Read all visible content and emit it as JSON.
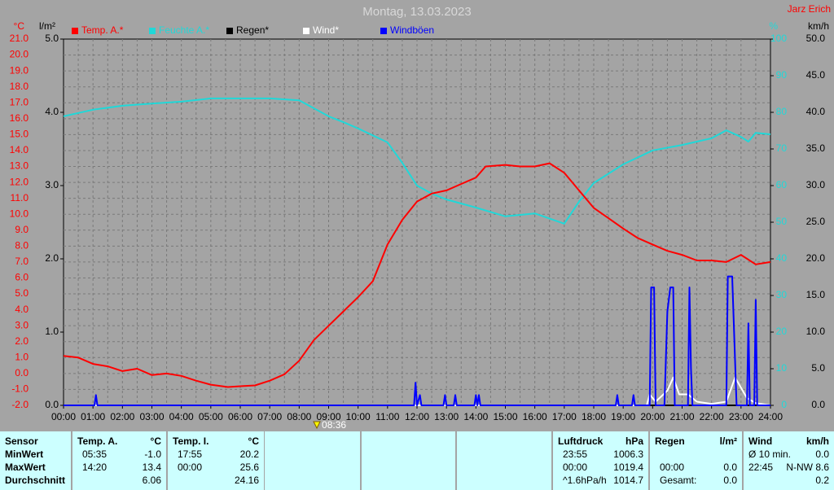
{
  "header": {
    "title": "Montag, 13.03.2023",
    "author": "Jarz Erich"
  },
  "chart_data": {
    "type": "line",
    "xlim": [
      0,
      24
    ],
    "xticks": [
      {
        "value": 0,
        "label": "00:00"
      },
      {
        "value": 1,
        "label": "01:00"
      },
      {
        "value": 2,
        "label": "02:00"
      },
      {
        "value": 3,
        "label": "03:00"
      },
      {
        "value": 4,
        "label": "04:00"
      },
      {
        "value": 5,
        "label": "05:00"
      },
      {
        "value": 6,
        "label": "06:00"
      },
      {
        "value": 7,
        "label": "07:00"
      },
      {
        "value": 8,
        "label": "08:00"
      },
      {
        "value": 9,
        "label": "09:00"
      },
      {
        "value": 10,
        "label": "10:00"
      },
      {
        "value": 11,
        "label": "11:00"
      },
      {
        "value": 12,
        "label": "12:00"
      },
      {
        "value": 13,
        "label": "13:00"
      },
      {
        "value": 14,
        "label": "14:00"
      },
      {
        "value": 15,
        "label": "15:00"
      },
      {
        "value": 16,
        "label": "16:00"
      },
      {
        "value": 17,
        "label": "17:00"
      },
      {
        "value": 18,
        "label": "18:00"
      },
      {
        "value": 19,
        "label": "19:00"
      },
      {
        "value": 20,
        "label": "20:00"
      },
      {
        "value": 21,
        "label": "21:00"
      },
      {
        "value": 22,
        "label": "22:00"
      },
      {
        "value": 23,
        "label": "23:00"
      },
      {
        "value": 24,
        "label": "24:00"
      }
    ],
    "ylabel": "°C",
    "ylim": [
      -2,
      21
    ],
    "yticks": [
      {
        "value": -2,
        "label": "-2.0"
      },
      {
        "value": -1,
        "label": "-1.0"
      },
      {
        "value": 0,
        "label": "0.0"
      },
      {
        "value": 1,
        "label": "1.0"
      },
      {
        "value": 2,
        "label": "2.0"
      },
      {
        "value": 3,
        "label": "3.0"
      },
      {
        "value": 4,
        "label": "4.0"
      },
      {
        "value": 5,
        "label": "5.0"
      },
      {
        "value": 6,
        "label": "6.0"
      },
      {
        "value": 7,
        "label": "7.0"
      },
      {
        "value": 8,
        "label": "8.0"
      },
      {
        "value": 9,
        "label": "9.0"
      },
      {
        "value": 10,
        "label": "10.0"
      },
      {
        "value": 11,
        "label": "11.0"
      },
      {
        "value": 12,
        "label": "12.0"
      },
      {
        "value": 13,
        "label": "13.0"
      },
      {
        "value": 14,
        "label": "14.0"
      },
      {
        "value": 15,
        "label": "15.0"
      },
      {
        "value": 16,
        "label": "16.0"
      },
      {
        "value": 17,
        "label": "17.0"
      },
      {
        "value": 18,
        "label": "18.0"
      },
      {
        "value": 19,
        "label": "19.0"
      },
      {
        "value": 20,
        "label": "20.0"
      },
      {
        "value": 21,
        "label": "21.0"
      }
    ],
    "rain_axis": {
      "label": "l/m²",
      "lim": [
        0,
        5
      ],
      "ticks": [
        {
          "value": 0,
          "label": "0.0"
        },
        {
          "value": 1,
          "label": "1.0"
        },
        {
          "value": 2,
          "label": "2.0"
        },
        {
          "value": 3,
          "label": "3.0"
        },
        {
          "value": 4,
          "label": "4.0"
        },
        {
          "value": 5,
          "label": "5.0"
        }
      ]
    },
    "y2label": "%",
    "y2lim": [
      0,
      100
    ],
    "y2ticks": [
      0,
      10,
      20,
      30,
      40,
      50,
      60,
      70,
      80,
      90,
      100
    ],
    "wind_axis": {
      "label": "km/h",
      "lim": [
        0,
        50
      ],
      "ticks": [
        {
          "value": 0,
          "label": "0.0"
        },
        {
          "value": 5,
          "label": "5.0"
        },
        {
          "value": 10,
          "label": "10.0"
        },
        {
          "value": 15,
          "label": "15.0"
        },
        {
          "value": 20,
          "label": "20.0"
        },
        {
          "value": 25,
          "label": "25.0"
        },
        {
          "value": 30,
          "label": "30.0"
        },
        {
          "value": 35,
          "label": "35.0"
        },
        {
          "value": 40,
          "label": "40.0"
        },
        {
          "value": 45,
          "label": "45.0"
        },
        {
          "value": 50,
          "label": "50.0"
        }
      ]
    },
    "grid": true,
    "marker": {
      "x": 8.6,
      "label": "08:36"
    },
    "series": [
      {
        "name": "Temp. A.*",
        "color": "#ff0000",
        "axis": "y",
        "x": [
          0,
          0.5,
          1,
          1.5,
          2,
          2.5,
          3,
          3.5,
          4,
          4.5,
          5,
          5.58,
          6,
          6.5,
          7,
          7.5,
          8,
          8.5,
          9,
          9.5,
          10,
          10.5,
          11,
          11.5,
          12,
          12.5,
          13,
          13.5,
          14,
          14.33,
          15,
          15.5,
          16,
          16.5,
          17,
          17.5,
          18,
          18.5,
          19,
          19.5,
          20,
          20.5,
          21,
          21.5,
          22,
          22.5,
          23,
          23.5,
          24
        ],
        "values": [
          1.1,
          1.0,
          0.6,
          0.45,
          0.15,
          0.3,
          -0.1,
          0.0,
          -0.15,
          -0.45,
          -0.7,
          -0.85,
          -0.8,
          -0.75,
          -0.45,
          -0.05,
          0.8,
          2.1,
          3.0,
          3.9,
          4.8,
          5.8,
          8.1,
          9.65,
          10.8,
          11.3,
          11.5,
          11.9,
          12.3,
          13.0,
          13.1,
          13.0,
          13.0,
          13.2,
          12.6,
          11.5,
          10.4,
          9.75,
          9.1,
          8.5,
          8.1,
          7.7,
          7.45,
          7.1,
          7.1,
          7.0,
          7.45,
          6.85,
          7.0
        ]
      },
      {
        "name": "Feuchte A.*",
        "color": "#20d8d8",
        "axis": "y2",
        "x": [
          0,
          1,
          2,
          3,
          4,
          5,
          6,
          7,
          8,
          9,
          9.5,
          10,
          11,
          11.5,
          12,
          12.5,
          13,
          14,
          15,
          16,
          17,
          17.5,
          18,
          19,
          20,
          21,
          22,
          22.5,
          23,
          23.25,
          23.5,
          24
        ],
        "values": [
          78.9,
          80.7,
          81.8,
          82.4,
          82.9,
          83.8,
          83.8,
          83.8,
          83.3,
          78.9,
          77.3,
          75.6,
          71.8,
          66.2,
          60.0,
          57.8,
          56.2,
          54.0,
          51.6,
          52.4,
          49.6,
          55.6,
          60.7,
          65.8,
          69.6,
          71.1,
          72.9,
          75.1,
          73.3,
          72.0,
          74.4,
          74.0
        ]
      },
      {
        "name": "Regen*",
        "color": "#000000",
        "axis": "rain",
        "x": [
          0,
          24
        ],
        "values": [
          0,
          0
        ]
      },
      {
        "name": "Wind*",
        "color": "#ffffff",
        "axis": "wind",
        "x": [
          0,
          19.8,
          19.9,
          20.1,
          20.5,
          20.7,
          20.9,
          21.2,
          21.5,
          22,
          22.5,
          22.8,
          23.2,
          23.5,
          24
        ],
        "values": [
          0,
          0,
          1.5,
          0.5,
          2,
          3.8,
          1.5,
          1.5,
          0.5,
          0.2,
          0.5,
          3.8,
          1,
          0.3,
          0
        ]
      },
      {
        "name": "Windböen",
        "color": "#0000ff",
        "axis": "wind",
        "x": [
          0,
          1.05,
          1.1,
          1.15,
          11.9,
          11.95,
          12.0,
          12.1,
          12.15,
          12.9,
          12.95,
          13.0,
          13.25,
          13.3,
          13.35,
          13.95,
          14.0,
          14.05,
          14.1,
          14.15,
          18.75,
          18.8,
          18.85,
          19.3,
          19.35,
          19.4,
          19.9,
          19.95,
          20.05,
          20.1,
          20.4,
          20.5,
          20.6,
          20.7,
          20.75,
          21.2,
          21.25,
          21.3,
          21.35,
          22.5,
          22.55,
          22.7,
          22.85,
          23.2,
          23.25,
          23.3,
          23.45,
          23.5,
          23.55,
          24
        ],
        "values": [
          0,
          0,
          1.4,
          0,
          0,
          3.1,
          0,
          1.4,
          0,
          0,
          1.4,
          0,
          0,
          1.4,
          0,
          0,
          1.4,
          0,
          1.4,
          0,
          0,
          1.4,
          0,
          0,
          1.4,
          0,
          0,
          16.1,
          16.1,
          0,
          0,
          12.8,
          16.1,
          16.1,
          0,
          0,
          16.1,
          5,
          0,
          0,
          17.6,
          17.6,
          0,
          0,
          11.2,
          0,
          0,
          14.4,
          0,
          0
        ]
      }
    ]
  },
  "table": {
    "row_labels": [
      "Sensor",
      "MinWert",
      "MaxWert",
      "Durchschnitt"
    ],
    "groups": [
      {
        "name": "Temp. A.",
        "unit": "°C",
        "rows": [
          [
            "05:35",
            "-1.0"
          ],
          [
            "14:20",
            "13.4"
          ],
          [
            null,
            "6.06"
          ]
        ]
      },
      {
        "name": "Temp. I.",
        "unit": "°C",
        "rows": [
          [
            "17:55",
            "20.2"
          ],
          [
            "00:00",
            "25.6"
          ],
          [
            null,
            "24.16"
          ]
        ]
      },
      {
        "name": "Luftdruck",
        "unit": "hPa",
        "rows": [
          [
            "23:55",
            "1006.3"
          ],
          [
            "00:00",
            "1019.4"
          ],
          [
            "^1.6hPa/h",
            "1014.7"
          ]
        ]
      },
      {
        "name": "Regen",
        "unit": "l/m²",
        "rows": [
          [
            null,
            null
          ],
          [
            "00:00",
            "0.0"
          ],
          [
            "Gesamt:",
            "0.0"
          ]
        ]
      },
      {
        "name": "Wind",
        "unit": "km/h",
        "rows": [
          [
            "Ø 10 min.",
            "0.0"
          ],
          [
            "22:45",
            "N-NW 8.6"
          ],
          [
            null,
            "0.2"
          ]
        ]
      }
    ]
  }
}
